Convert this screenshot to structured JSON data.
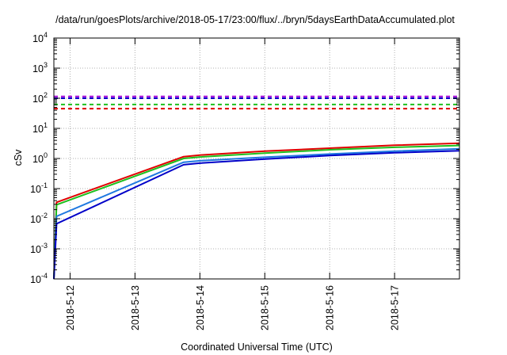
{
  "chart_data": {
    "type": "line",
    "title": "/data/run/goesPlots/archive/2018-05-17/23:00/flux/../bryn/5daysEarthDataAccumulated.plot",
    "xlabel": "Coordinated Universal Time (UTC)",
    "ylabel": "cSv",
    "yscale": "log",
    "ylim": [
      0.0001,
      10000
    ],
    "xlim": [
      "2018-05-11 18:00",
      "2018-05-18 00:00"
    ],
    "grid": true,
    "y_ticks": [
      {
        "base": "10",
        "exp": "-4"
      },
      {
        "base": "10",
        "exp": "-3"
      },
      {
        "base": "10",
        "exp": "-2"
      },
      {
        "base": "10",
        "exp": "-1"
      },
      {
        "base": "10",
        "exp": "0"
      },
      {
        "base": "10",
        "exp": "1"
      },
      {
        "base": "10",
        "exp": "2"
      },
      {
        "base": "10",
        "exp": "3"
      },
      {
        "base": "10",
        "exp": "4"
      }
    ],
    "x_ticks": [
      {
        "label": "2018-5-12",
        "x": "2018-05-12 00:00"
      },
      {
        "label": "2018-5-13",
        "x": "2018-05-13 00:00"
      },
      {
        "label": "2018-5-14",
        "x": "2018-05-14 00:00"
      },
      {
        "label": "2018-5-15",
        "x": "2018-05-15 00:00"
      },
      {
        "label": "2018-5-16",
        "x": "2018-05-16 00:00"
      },
      {
        "label": "2018-5-17",
        "x": "2018-05-17 00:00"
      }
    ],
    "series": [
      {
        "color": "#e00000",
        "points": [
          [
            "2018-05-11 18:00",
            0.0001
          ],
          [
            "2018-05-11 19:00",
            0.035
          ],
          [
            "2018-05-13 18:00",
            1.15
          ],
          [
            "2018-05-14 00:00",
            1.3
          ],
          [
            "2018-05-15 00:00",
            1.75
          ],
          [
            "2018-05-16 00:00",
            2.2
          ],
          [
            "2018-05-17 00:00",
            2.75
          ],
          [
            "2018-05-18 00:00",
            3.2
          ]
        ]
      },
      {
        "color": "#1ec01e",
        "points": [
          [
            "2018-05-11 18:00",
            0.0001
          ],
          [
            "2018-05-11 19:00",
            0.029
          ],
          [
            "2018-05-13 18:00",
            1.0
          ],
          [
            "2018-05-14 00:00",
            1.12
          ],
          [
            "2018-05-15 00:00",
            1.5
          ],
          [
            "2018-05-16 00:00",
            1.95
          ],
          [
            "2018-05-17 00:00",
            2.35
          ],
          [
            "2018-05-18 00:00",
            2.7
          ]
        ]
      },
      {
        "color": "#1e78e0",
        "points": [
          [
            "2018-05-11 18:00",
            0.0001
          ],
          [
            "2018-05-11 19:00",
            0.012
          ],
          [
            "2018-05-13 18:00",
            0.75
          ],
          [
            "2018-05-14 00:00",
            0.84
          ],
          [
            "2018-05-15 00:00",
            1.1
          ],
          [
            "2018-05-16 00:00",
            1.4
          ],
          [
            "2018-05-17 00:00",
            1.75
          ],
          [
            "2018-05-18 00:00",
            2.1
          ]
        ]
      },
      {
        "color": "#0000c8",
        "points": [
          [
            "2018-05-11 18:00",
            0.0001
          ],
          [
            "2018-05-11 19:00",
            0.0068
          ],
          [
            "2018-05-13 18:00",
            0.62
          ],
          [
            "2018-05-14 00:00",
            0.7
          ],
          [
            "2018-05-15 00:00",
            0.95
          ],
          [
            "2018-05-16 00:00",
            1.25
          ],
          [
            "2018-05-17 00:00",
            1.55
          ],
          [
            "2018-05-18 00:00",
            1.8
          ]
        ]
      }
    ],
    "reference_lines": [
      {
        "color": "#a000d8",
        "dash": "dashed",
        "y": 115
      },
      {
        "color": "#0000c8",
        "dash": "dashed",
        "y": 100
      },
      {
        "color": "#1ec01e",
        "dash": "dashed",
        "y": 62
      },
      {
        "color": "#e00000",
        "dash": "dashed",
        "y": 45
      }
    ]
  }
}
